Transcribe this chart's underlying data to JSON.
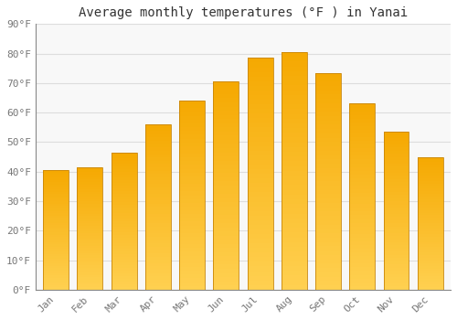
{
  "title": "Average monthly temperatures (°F ) in Yanai",
  "months": [
    "Jan",
    "Feb",
    "Mar",
    "Apr",
    "May",
    "Jun",
    "Jul",
    "Aug",
    "Sep",
    "Oct",
    "Nov",
    "Dec"
  ],
  "values": [
    40.5,
    41.5,
    46.5,
    56.0,
    64.0,
    70.5,
    78.5,
    80.5,
    73.5,
    63.0,
    53.5,
    45.0
  ],
  "bar_color_dark": "#F5A800",
  "bar_color_light": "#FFD050",
  "bar_edge_color": "#C8860A",
  "background_color": "#FFFFFF",
  "plot_bg_color": "#F8F8F8",
  "grid_color": "#DDDDDD",
  "text_color": "#777777",
  "title_color": "#333333",
  "ylim": [
    0,
    90
  ],
  "yticks": [
    0,
    10,
    20,
    30,
    40,
    50,
    60,
    70,
    80,
    90
  ],
  "ytick_labels": [
    "0°F",
    "10°F",
    "20°F",
    "30°F",
    "40°F",
    "50°F",
    "60°F",
    "70°F",
    "80°F",
    "90°F"
  ],
  "title_fontsize": 10,
  "tick_fontsize": 8,
  "font_family": "monospace",
  "bar_width": 0.75
}
